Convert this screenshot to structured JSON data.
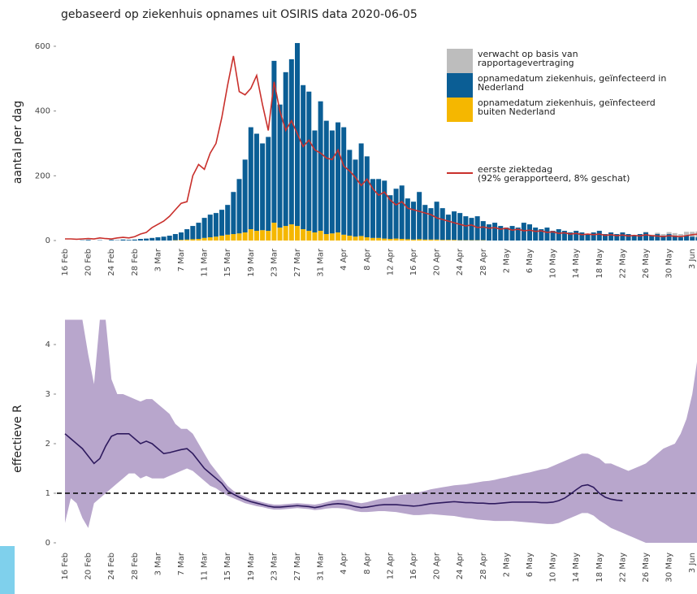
{
  "chart_data": [
    {
      "type": "bar",
      "stacked": true,
      "title": "gebaseerd op ziekenhuis opnames uit OSIRIS data 2020-06-05",
      "y_label": "aantal per dag",
      "ylim": [
        0,
        630
      ],
      "yticks": [
        0,
        200,
        400,
        600
      ],
      "categories": [
        "16 Feb",
        null,
        null,
        null,
        "20 Feb",
        null,
        null,
        null,
        "24 Feb",
        null,
        null,
        null,
        "28 Feb",
        null,
        null,
        null,
        "3 Mar",
        null,
        null,
        null,
        "7 Mar",
        null,
        null,
        null,
        "11 Mar",
        null,
        null,
        null,
        "15 Mar",
        null,
        null,
        null,
        "19 Mar",
        null,
        null,
        null,
        "23 Mar",
        null,
        null,
        null,
        "27 Mar",
        null,
        null,
        null,
        "31 Mar",
        null,
        null,
        null,
        "4 Apr",
        null,
        null,
        null,
        "8 Apr",
        null,
        null,
        null,
        "12 Apr",
        null,
        null,
        null,
        "16 Apr",
        null,
        null,
        null,
        "20 Apr",
        null,
        null,
        null,
        "24 Apr",
        null,
        null,
        null,
        "28 Apr",
        null,
        null,
        null,
        "2 May",
        null,
        null,
        null,
        "6 May",
        null,
        null,
        null,
        "10 May",
        null,
        null,
        null,
        "14 May",
        null,
        null,
        null,
        "18 May",
        null,
        null,
        null,
        "22 May",
        null,
        null,
        null,
        "26 May",
        null,
        null,
        null,
        "30 May",
        null,
        null,
        null,
        "3 Jun",
        null,
        null
      ],
      "series": [
        {
          "name": "verwacht op basis van rapportagevertraging",
          "color": "#bdbdbd",
          "values": [
            0,
            0,
            0,
            0,
            0,
            0,
            0,
            0,
            0,
            0,
            0,
            0,
            0,
            0,
            0,
            0,
            0,
            0,
            0,
            0,
            0,
            0,
            0,
            0,
            0,
            0,
            0,
            0,
            0,
            0,
            0,
            0,
            0,
            0,
            0,
            0,
            0,
            0,
            0,
            0,
            0,
            0,
            0,
            0,
            0,
            0,
            0,
            0,
            0,
            0,
            0,
            0,
            0,
            0,
            0,
            0,
            0,
            0,
            0,
            0,
            0,
            0,
            0,
            0,
            0,
            0,
            0,
            0,
            0,
            0,
            0,
            0,
            0,
            0,
            0,
            0,
            0,
            0,
            0,
            0,
            0,
            0,
            0,
            0,
            0,
            0,
            0,
            0,
            0,
            0,
            0,
            0,
            0,
            0,
            0,
            0,
            0,
            0,
            0,
            0,
            2,
            3,
            4,
            5,
            6,
            8,
            10,
            12,
            15,
            18,
            20
          ]
        },
        {
          "name": "opnamedatum ziekenhuis, geïnfecteerd in Nederland",
          "color": "#0b5e95",
          "values": [
            0,
            0,
            0,
            1,
            2,
            0,
            1,
            0,
            2,
            1,
            3,
            2,
            3,
            5,
            6,
            8,
            10,
            12,
            15,
            19,
            23,
            32,
            41,
            50,
            62,
            70,
            73,
            80,
            92,
            130,
            168,
            225,
            315,
            300,
            268,
            290,
            500,
            380,
            475,
            510,
            565,
            445,
            430,
            315,
            400,
            350,
            318,
            340,
            332,
            265,
            238,
            286,
            250,
            182,
            182,
            179,
            135,
            154,
            165,
            126,
            117,
            146,
            107,
            97,
            117,
            98,
            78,
            88,
            84,
            74,
            69,
            74,
            59,
            50,
            55,
            45,
            40,
            45,
            40,
            55,
            50,
            40,
            35,
            40,
            30,
            35,
            30,
            25,
            30,
            25,
            20,
            25,
            30,
            20,
            25,
            20,
            25,
            20,
            15,
            20,
            25,
            15,
            20,
            15,
            20,
            15,
            10,
            15,
            12,
            10,
            8
          ]
        },
        {
          "name": "opnamedatum ziekenhuis, geïnfecteerd buiten Nederland",
          "color": "#f5b700",
          "values": [
            0,
            0,
            0,
            0,
            0,
            0,
            0,
            0,
            0,
            0,
            0,
            0,
            0,
            0,
            0,
            0,
            0,
            0,
            0,
            1,
            2,
            3,
            4,
            5,
            8,
            10,
            12,
            15,
            18,
            20,
            22,
            25,
            35,
            30,
            32,
            30,
            55,
            40,
            45,
            50,
            45,
            35,
            30,
            25,
            30,
            20,
            22,
            25,
            18,
            15,
            12,
            14,
            10,
            8,
            8,
            6,
            5,
            6,
            5,
            4,
            3,
            4,
            3,
            3,
            3,
            2,
            2,
            2,
            1,
            1,
            1,
            1,
            1,
            0,
            0,
            0,
            0,
            0,
            0,
            0,
            0,
            0,
            0,
            0,
            0,
            0,
            0,
            0,
            0,
            0,
            0,
            0,
            0,
            0,
            0,
            0,
            0,
            0,
            0,
            0,
            0,
            0,
            0,
            0,
            0,
            0,
            0,
            0,
            0,
            0,
            0
          ]
        },
        {
          "name": "eerste ziektedag\n (92% gerapporteerd, 8% geschat)",
          "color": "#c9302c",
          "type": "line",
          "values": [
            5,
            5,
            4,
            5,
            6,
            5,
            8,
            6,
            5,
            8,
            10,
            8,
            12,
            20,
            25,
            40,
            50,
            60,
            75,
            95,
            115,
            120,
            200,
            235,
            220,
            270,
            300,
            380,
            480,
            570,
            460,
            450,
            470,
            510,
            420,
            340,
            490,
            400,
            340,
            370,
            330,
            290,
            310,
            280,
            270,
            255,
            250,
            280,
            230,
            215,
            195,
            170,
            190,
            160,
            140,
            150,
            125,
            110,
            120,
            100,
            95,
            90,
            85,
            80,
            70,
            65,
            60,
            55,
            50,
            45,
            48,
            40,
            42,
            38,
            40,
            35,
            38,
            32,
            35,
            30,
            32,
            28,
            30,
            25,
            27,
            22,
            24,
            20,
            22,
            18,
            20,
            18,
            20,
            16,
            18,
            15,
            17,
            14,
            16,
            14,
            18,
            15,
            14,
            12,
            15,
            13,
            12,
            15,
            18,
            20,
            22
          ]
        }
      ]
    },
    {
      "type": "line",
      "y_label": "effectieve R",
      "ylim": [
        0,
        4.5
      ],
      "yticks": [
        0,
        1,
        2,
        3,
        4
      ],
      "hline": 1,
      "color": "#2e1a5e",
      "band_color": "#b8a6cc",
      "categories": [
        "16 Feb",
        null,
        null,
        null,
        "20 Feb",
        null,
        null,
        null,
        "24 Feb",
        null,
        null,
        null,
        "28 Feb",
        null,
        null,
        null,
        "3 Mar",
        null,
        null,
        null,
        "7 Mar",
        null,
        null,
        null,
        "11 Mar",
        null,
        null,
        null,
        "15 Mar",
        null,
        null,
        null,
        "19 Mar",
        null,
        null,
        null,
        "23 Mar",
        null,
        null,
        null,
        "27 Mar",
        null,
        null,
        null,
        "31 Mar",
        null,
        null,
        null,
        "4 Apr",
        null,
        null,
        null,
        "8 Apr",
        null,
        null,
        null,
        "12 Apr",
        null,
        null,
        null,
        "16 Apr",
        null,
        null,
        null,
        "20 Apr",
        null,
        null,
        null,
        "24 Apr",
        null,
        null,
        null,
        "28 Apr",
        null,
        null,
        null,
        "2 May",
        null,
        null,
        null,
        "6 May",
        null,
        null,
        null,
        "10 May",
        null,
        null,
        null,
        "14 May",
        null,
        null,
        null,
        "18 May",
        null,
        null,
        null,
        "22 May",
        null,
        null,
        null,
        "26 May",
        null,
        null,
        null,
        "30 May",
        null,
        null,
        null,
        "3 Jun",
        null,
        null
      ],
      "values": [
        2.2,
        2.1,
        2.0,
        1.9,
        1.75,
        1.6,
        1.7,
        1.95,
        2.15,
        2.2,
        2.2,
        2.2,
        2.1,
        2.0,
        2.05,
        2.0,
        1.9,
        1.8,
        1.82,
        1.85,
        1.88,
        1.9,
        1.8,
        1.65,
        1.5,
        1.4,
        1.3,
        1.2,
        1.05,
        0.98,
        0.92,
        0.87,
        0.83,
        0.8,
        0.77,
        0.74,
        0.72,
        0.72,
        0.73,
        0.74,
        0.75,
        0.74,
        0.73,
        0.71,
        0.73,
        0.76,
        0.78,
        0.79,
        0.78,
        0.76,
        0.73,
        0.71,
        0.72,
        0.74,
        0.76,
        0.77,
        0.77,
        0.77,
        0.76,
        0.75,
        0.74,
        0.75,
        0.77,
        0.79,
        0.8,
        0.81,
        0.82,
        0.83,
        0.82,
        0.81,
        0.81,
        0.8,
        0.8,
        0.79,
        0.79,
        0.8,
        0.81,
        0.82,
        0.82,
        0.82,
        0.82,
        0.82,
        0.81,
        0.81,
        0.82,
        0.85,
        0.9,
        0.98,
        1.07,
        1.15,
        1.17,
        1.12,
        1.0,
        0.92,
        0.88,
        0.86,
        0.85,
        null,
        null,
        null,
        null,
        null,
        null,
        null,
        null,
        null,
        null,
        null,
        null,
        null,
        null
      ],
      "band_upper": [
        4.5,
        4.5,
        4.5,
        4.5,
        3.8,
        3.2,
        4.5,
        4.5,
        3.3,
        3.0,
        3.0,
        2.95,
        2.9,
        2.85,
        2.9,
        2.9,
        2.8,
        2.7,
        2.6,
        2.4,
        2.3,
        2.3,
        2.2,
        2.0,
        1.8,
        1.6,
        1.45,
        1.3,
        1.15,
        1.05,
        0.98,
        0.93,
        0.88,
        0.85,
        0.82,
        0.79,
        0.77,
        0.77,
        0.78,
        0.79,
        0.8,
        0.79,
        0.78,
        0.77,
        0.79,
        0.82,
        0.85,
        0.87,
        0.87,
        0.85,
        0.82,
        0.8,
        0.82,
        0.85,
        0.88,
        0.9,
        0.92,
        0.95,
        0.97,
        0.98,
        1.0,
        1.02,
        1.05,
        1.08,
        1.1,
        1.12,
        1.14,
        1.16,
        1.17,
        1.18,
        1.2,
        1.22,
        1.24,
        1.25,
        1.27,
        1.3,
        1.32,
        1.35,
        1.37,
        1.4,
        1.42,
        1.45,
        1.48,
        1.5,
        1.55,
        1.6,
        1.65,
        1.7,
        1.75,
        1.8,
        1.8,
        1.75,
        1.7,
        1.6,
        1.6,
        1.55,
        1.5,
        1.45,
        1.5,
        1.55,
        1.6,
        1.7,
        1.8,
        1.9,
        1.95,
        2.0,
        2.2,
        2.5,
        3.0,
        3.8,
        4.5
      ],
      "band_lower": [
        0.4,
        0.9,
        0.8,
        0.5,
        0.3,
        0.8,
        0.9,
        1.0,
        1.1,
        1.2,
        1.3,
        1.4,
        1.4,
        1.3,
        1.35,
        1.3,
        1.3,
        1.3,
        1.35,
        1.4,
        1.45,
        1.5,
        1.45,
        1.35,
        1.25,
        1.15,
        1.1,
        1.02,
        0.95,
        0.9,
        0.85,
        0.8,
        0.77,
        0.74,
        0.72,
        0.69,
        0.67,
        0.67,
        0.68,
        0.69,
        0.7,
        0.69,
        0.68,
        0.66,
        0.67,
        0.69,
        0.7,
        0.7,
        0.69,
        0.67,
        0.64,
        0.62,
        0.62,
        0.63,
        0.64,
        0.64,
        0.63,
        0.62,
        0.6,
        0.58,
        0.56,
        0.56,
        0.57,
        0.58,
        0.57,
        0.56,
        0.55,
        0.54,
        0.52,
        0.5,
        0.49,
        0.47,
        0.46,
        0.45,
        0.44,
        0.44,
        0.44,
        0.44,
        0.43,
        0.42,
        0.41,
        0.4,
        0.39,
        0.38,
        0.38,
        0.4,
        0.45,
        0.5,
        0.55,
        0.6,
        0.6,
        0.55,
        0.45,
        0.38,
        0.3,
        0.25,
        0.2,
        0.15,
        0.1,
        0.05,
        0,
        0,
        0,
        0,
        0,
        0,
        0,
        0,
        0,
        0,
        0
      ]
    }
  ]
}
